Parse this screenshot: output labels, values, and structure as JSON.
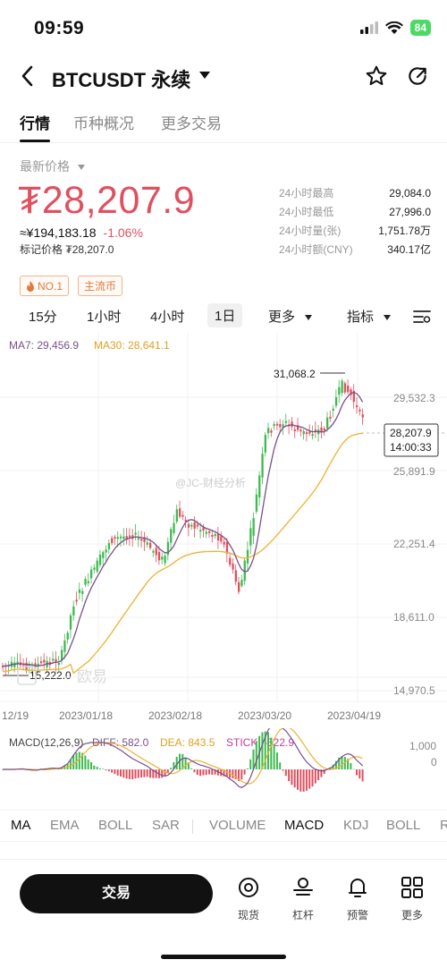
{
  "status": {
    "time": "09:59",
    "battery": "84"
  },
  "header": {
    "title": "BTCUSDT 永续"
  },
  "tabs": [
    "行情",
    "币种概况",
    "更多交易"
  ],
  "price": {
    "label": "最新价格",
    "last": "₮28,207.9",
    "cny": "≈¥194,183.18",
    "change": "-1.06%",
    "mark_label": "标记价格",
    "mark": "₮28,207.0"
  },
  "stats": [
    {
      "k": "24小时最高",
      "v": "29,084.0"
    },
    {
      "k": "24小时最低",
      "v": "27,996.0"
    },
    {
      "k": "24小时量(张)",
      "v": "1,751.78万"
    },
    {
      "k": "24小时额(CNY)",
      "v": "340.17亿"
    }
  ],
  "badges": [
    "NO.1",
    "主流币"
  ],
  "intervals": [
    "15分",
    "1小时",
    "4小时",
    "1日",
    "更多",
    "指标"
  ],
  "chart_legend": {
    "ma7": "MA7: 29,456.9",
    "ma30": "MA30: 28,641.1"
  },
  "price_axis": [
    "29,532.3",
    "25,891.9",
    "22,251.4",
    "18,611.0",
    "14,970.5"
  ],
  "high_label": "31,068.2",
  "low_label": "15,222.0",
  "current_price_tag": "28,207.9",
  "current_time_tag": "14:00:33",
  "watermark": "@JC-财经分析",
  "brand_watermark": "欧易",
  "date_axis": [
    "12/19",
    "2023/01/18",
    "2023/02/18",
    "2023/03/20",
    "2023/04/19"
  ],
  "macd_legend": {
    "macd": "MACD(12,26,9)",
    "dif": "DIFF: 582.0",
    "dea": "DEA: 843.5",
    "stick": "STICK: -522.9"
  },
  "macd_axis": [
    "1,000",
    "0"
  ],
  "indicator_tabs": [
    "MA",
    "EMA",
    "BOLL",
    "SAR",
    "VOLUME",
    "MACD",
    "KDJ",
    "BOLL",
    "R"
  ],
  "bottom": {
    "trade": "交易",
    "tools": [
      "现货",
      "杠杆",
      "预警",
      "更多"
    ]
  },
  "colors": {
    "up": "#3fb950",
    "down": "#e0505f",
    "ma7": "#7a4f8c",
    "ma30": "#f0b030"
  },
  "chart_data": [
    {
      "type": "line",
      "title": "BTCUSDT 永续 1日",
      "x": [
        "12/19",
        "2023/01/18",
        "2023/02/18",
        "2023/03/20",
        "2023/04/19"
      ],
      "series": [
        {
          "name": "MA7",
          "values": [
            16800,
            20800,
            23900,
            24200,
            29456.9
          ]
        },
        {
          "name": "MA30",
          "values": [
            16700,
            17600,
            21900,
            22900,
            28641.1
          ]
        }
      ],
      "ylim": [
        14970.5,
        31068.2
      ]
    }
  ]
}
